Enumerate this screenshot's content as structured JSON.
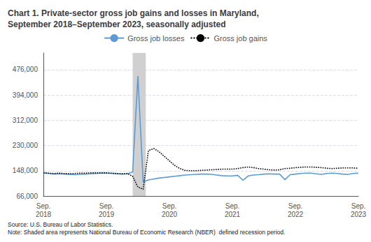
{
  "chart_data": {
    "type": "line",
    "title": "Chart 1. Private-sector gross job gains and losses in Maryland,\nSeptember 2018–September 2023, seasonally adjusted",
    "note": "Source: U.S. Bureau of Labor Statistics.\nNote: Shaded area represents National Bureau of Economic Research (NBER)  defined recession period.",
    "categories": [
      "Sep.\n2018",
      null,
      null,
      null,
      null,
      null,
      null,
      null,
      null,
      null,
      null,
      null,
      "Sep.\n2019",
      null,
      null,
      null,
      null,
      null,
      null,
      null,
      null,
      null,
      null,
      null,
      "Sep.\n2020",
      null,
      null,
      null,
      null,
      null,
      null,
      null,
      null,
      null,
      null,
      null,
      "Sep.\n2021",
      null,
      null,
      null,
      null,
      null,
      null,
      null,
      null,
      null,
      null,
      null,
      "Sep.\n2022",
      null,
      null,
      null,
      null,
      null,
      null,
      null,
      null,
      null,
      null,
      null,
      "Sep.\n2023"
    ],
    "series": [
      {
        "name": "Gross job losses",
        "color": "#5B9BD5",
        "line_style": "solid",
        "values": [
          141000,
          139000,
          137000,
          138000,
          137000,
          136000,
          135000,
          136000,
          137000,
          138000,
          139000,
          140000,
          140000,
          139000,
          138000,
          137000,
          138000,
          144000,
          455000,
          112000,
          118000,
          121000,
          124000,
          126000,
          128000,
          130000,
          132000,
          134000,
          135000,
          136000,
          137000,
          137000,
          136000,
          134000,
          132000,
          131000,
          131000,
          133000,
          117000,
          131000,
          134000,
          135000,
          137000,
          138000,
          137000,
          137000,
          119000,
          135000,
          137000,
          139000,
          140000,
          140000,
          138000,
          136000,
          139000,
          140000,
          139000,
          137000,
          136000,
          139000,
          140000
        ]
      },
      {
        "name": "Gross job gains",
        "color": "#000000",
        "line_style": "dotted",
        "values": [
          141000,
          140000,
          139000,
          140000,
          139000,
          138000,
          139000,
          140000,
          140000,
          141000,
          141000,
          141000,
          141000,
          140000,
          139000,
          138000,
          139000,
          130000,
          95000,
          88000,
          213000,
          220000,
          210000,
          195000,
          180000,
          165000,
          155000,
          149000,
          148000,
          148000,
          149000,
          150000,
          151000,
          152000,
          153000,
          153000,
          153000,
          155000,
          158000,
          160000,
          158000,
          155000,
          153000,
          151000,
          150000,
          151000,
          155000,
          156000,
          158000,
          159000,
          160000,
          160000,
          159000,
          158000,
          156000,
          155000,
          156000,
          157000,
          157000,
          157000,
          156000
        ]
      }
    ],
    "shaded": {
      "start": 17,
      "end": 19.5,
      "color": "#d0d0d0"
    },
    "ylim": [
      66000,
      530000
    ],
    "yticks": [
      {
        "value": 66000,
        "label": "66,000"
      },
      {
        "value": 148000,
        "label": "148,000"
      },
      {
        "value": 230000,
        "label": "230,000"
      },
      {
        "value": 312000,
        "label": "312,000"
      },
      {
        "value": 394000,
        "label": "394,000"
      },
      {
        "value": 476000,
        "label": "476,000"
      }
    ],
    "grid": true,
    "legend": "top"
  }
}
